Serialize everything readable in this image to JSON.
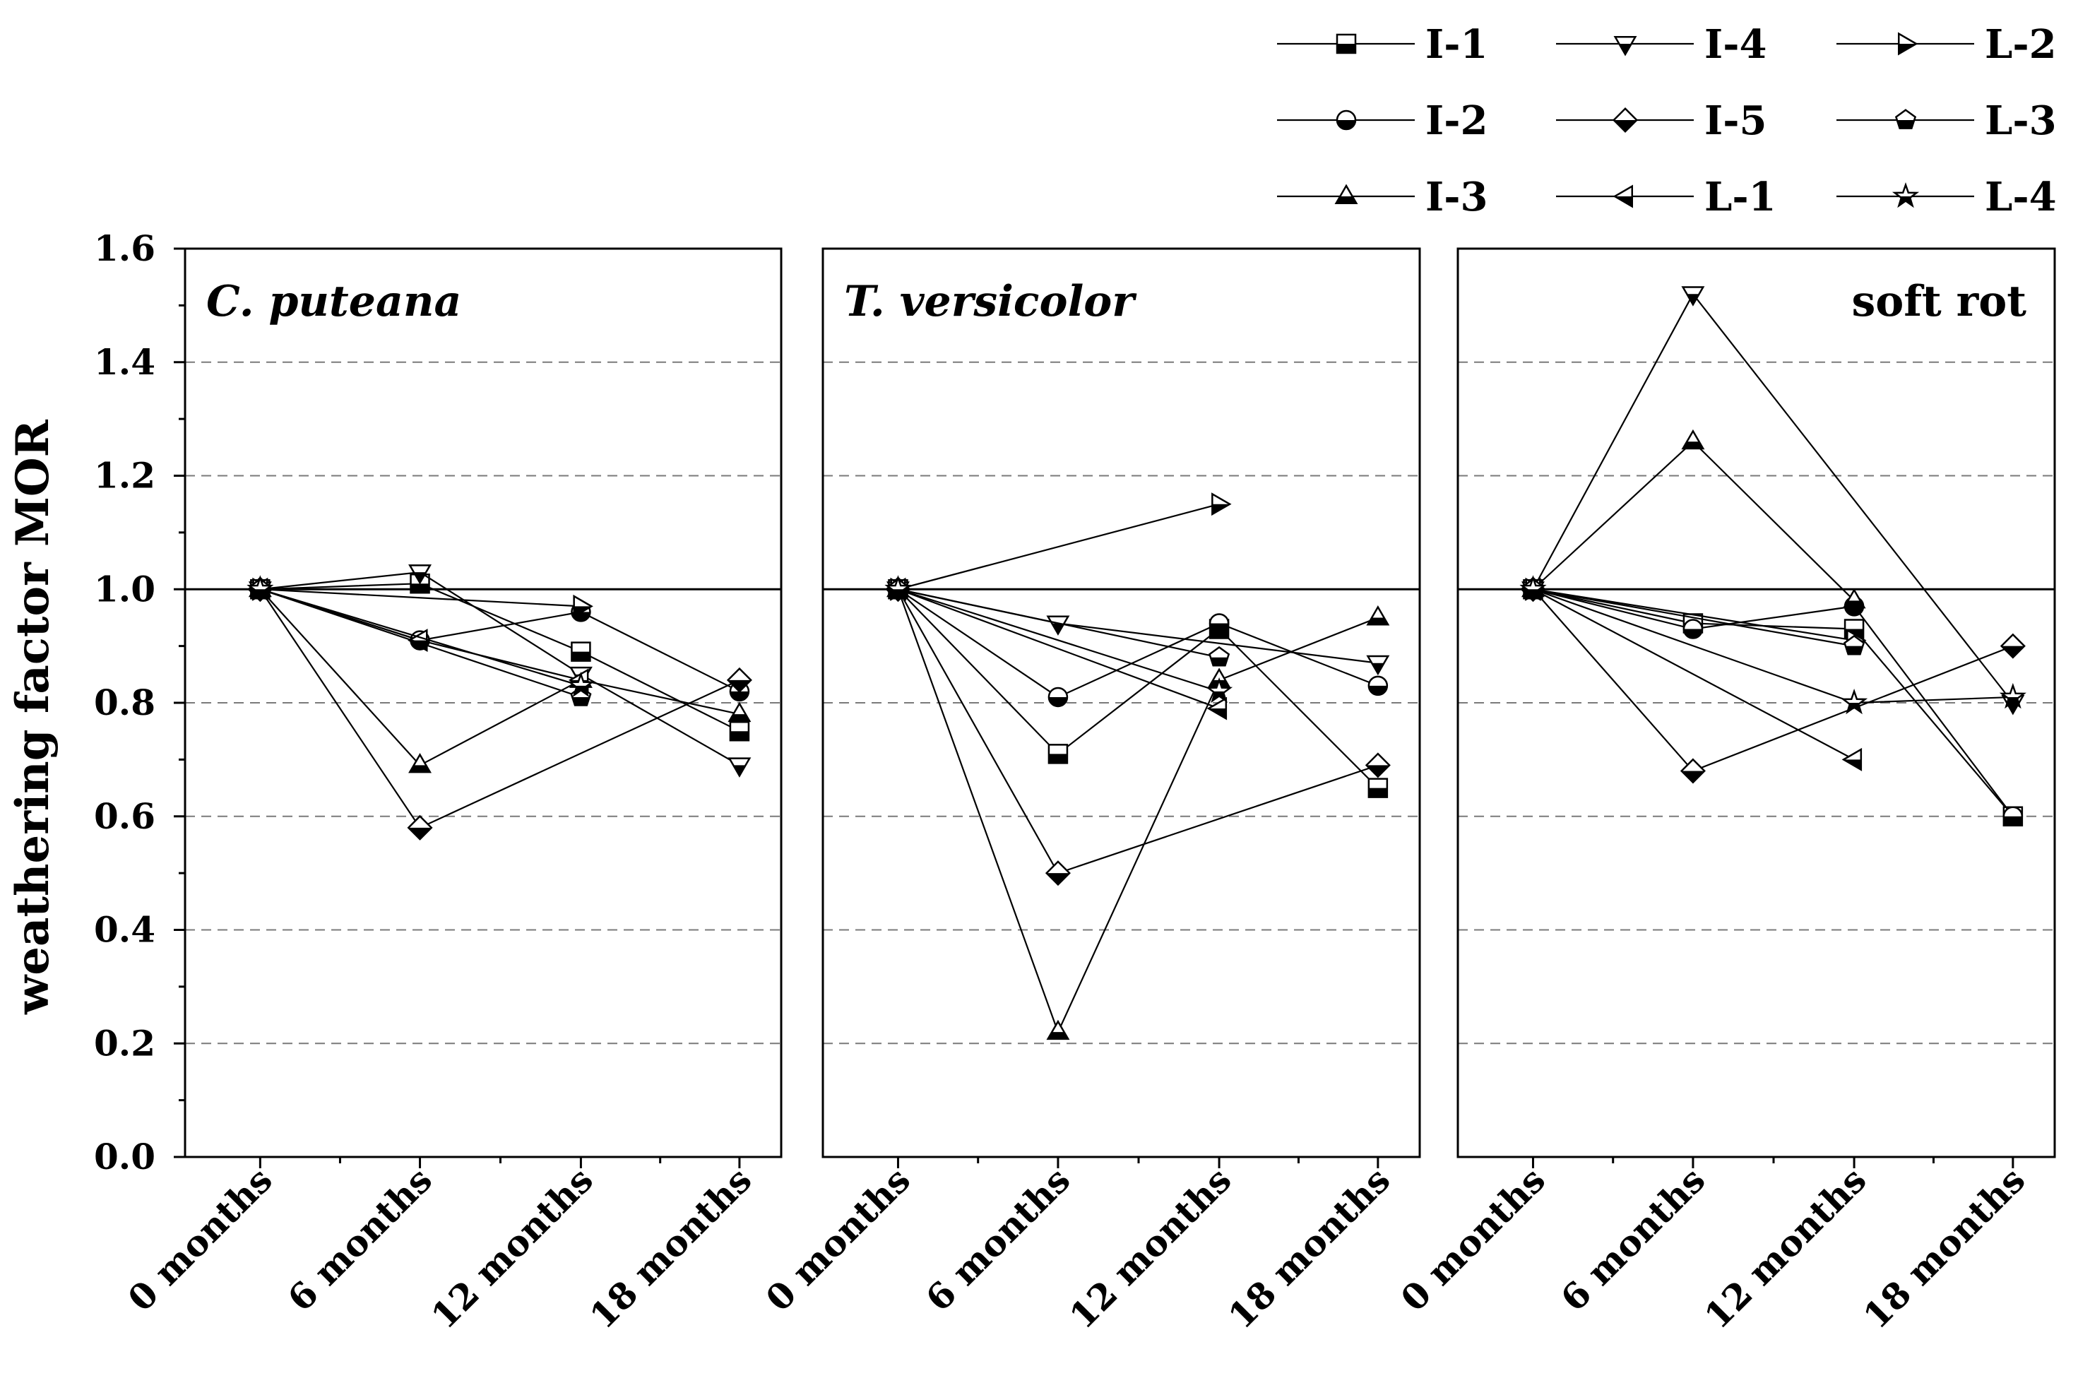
{
  "chart_data": {
    "type": "line",
    "ylabel": "weathering factor MOR",
    "ylim": [
      0.0,
      1.6
    ],
    "yticks": [
      "0.0",
      "0.2",
      "0.4",
      "0.6",
      "0.8",
      "1.0",
      "1.2",
      "1.4",
      "1.6"
    ],
    "categories": [
      "0 months",
      "6 months",
      "12 months",
      "18 months"
    ],
    "grid": "dashed horizontal at 0.2, 0.4, 0.6, 0.8, 1.2, 1.4; solid reference at 1.0",
    "legend_placement": "top-right",
    "series_styles": {
      "I-1": {
        "marker": "square"
      },
      "I-2": {
        "marker": "circle"
      },
      "I-3": {
        "marker": "triangle-up"
      },
      "I-4": {
        "marker": "triangle-down"
      },
      "I-5": {
        "marker": "diamond"
      },
      "L-1": {
        "marker": "triangle-left"
      },
      "L-2": {
        "marker": "triangle-right"
      },
      "L-3": {
        "marker": "pentagon"
      },
      "L-4": {
        "marker": "star"
      }
    },
    "legend": [
      [
        "I-1",
        "I-4",
        "L-2"
      ],
      [
        "I-2",
        "I-5",
        "L-3"
      ],
      [
        "I-3",
        "L-1",
        "L-4"
      ]
    ],
    "panels": [
      {
        "label": "C. puteana",
        "label_style": "italic",
        "label_align": "left",
        "series": [
          {
            "name": "I-1",
            "values": [
              1.0,
              1.01,
              0.89,
              0.75
            ]
          },
          {
            "name": "I-2",
            "values": [
              1.0,
              0.91,
              0.96,
              0.82
            ]
          },
          {
            "name": "I-3",
            "values": [
              1.0,
              0.69,
              0.84,
              0.78
            ]
          },
          {
            "name": "I-4",
            "values": [
              1.0,
              1.03,
              0.85,
              0.69
            ]
          },
          {
            "name": "I-5",
            "values": [
              1.0,
              0.58,
              null,
              0.84
            ]
          },
          {
            "name": "L-1",
            "values": [
              1.0,
              0.91,
              0.84,
              null
            ]
          },
          {
            "name": "L-2",
            "values": [
              1.0,
              null,
              0.97,
              null
            ]
          },
          {
            "name": "L-3",
            "values": [
              1.0,
              null,
              0.81,
              null
            ]
          },
          {
            "name": "L-4",
            "values": [
              1.0,
              null,
              0.83,
              null
            ]
          }
        ]
      },
      {
        "label": "T. versicolor",
        "label_style": "italic",
        "label_align": "left",
        "series": [
          {
            "name": "I-1",
            "values": [
              1.0,
              0.71,
              0.93,
              0.65
            ]
          },
          {
            "name": "I-2",
            "values": [
              1.0,
              0.81,
              0.94,
              0.83
            ]
          },
          {
            "name": "I-3",
            "values": [
              1.0,
              0.22,
              0.84,
              0.95
            ]
          },
          {
            "name": "I-4",
            "values": [
              1.0,
              0.94,
              null,
              0.87
            ]
          },
          {
            "name": "I-5",
            "values": [
              1.0,
              0.5,
              null,
              0.69
            ]
          },
          {
            "name": "L-1",
            "values": [
              1.0,
              null,
              0.79,
              null
            ]
          },
          {
            "name": "L-2",
            "values": [
              1.0,
              null,
              1.15,
              null
            ]
          },
          {
            "name": "L-3",
            "values": [
              1.0,
              null,
              0.88,
              null
            ]
          },
          {
            "name": "L-4",
            "values": [
              1.0,
              null,
              0.82,
              null
            ]
          }
        ]
      },
      {
        "label": "soft rot",
        "label_style": "normal",
        "label_align": "right",
        "series": [
          {
            "name": "I-1",
            "values": [
              1.0,
              0.94,
              0.93,
              0.6
            ]
          },
          {
            "name": "I-2",
            "values": [
              1.0,
              0.93,
              0.97,
              0.6
            ]
          },
          {
            "name": "I-3",
            "values": [
              1.0,
              1.26,
              0.98,
              null
            ]
          },
          {
            "name": "I-4",
            "values": [
              1.0,
              1.52,
              null,
              0.8
            ]
          },
          {
            "name": "I-5",
            "values": [
              1.0,
              0.68,
              null,
              0.9
            ]
          },
          {
            "name": "L-1",
            "values": [
              1.0,
              null,
              0.7,
              null
            ]
          },
          {
            "name": "L-2",
            "values": [
              1.0,
              null,
              0.91,
              null
            ]
          },
          {
            "name": "L-3",
            "values": [
              1.0,
              null,
              0.9,
              null
            ]
          },
          {
            "name": "L-4",
            "values": [
              1.0,
              null,
              0.8,
              0.81
            ]
          }
        ]
      }
    ]
  }
}
